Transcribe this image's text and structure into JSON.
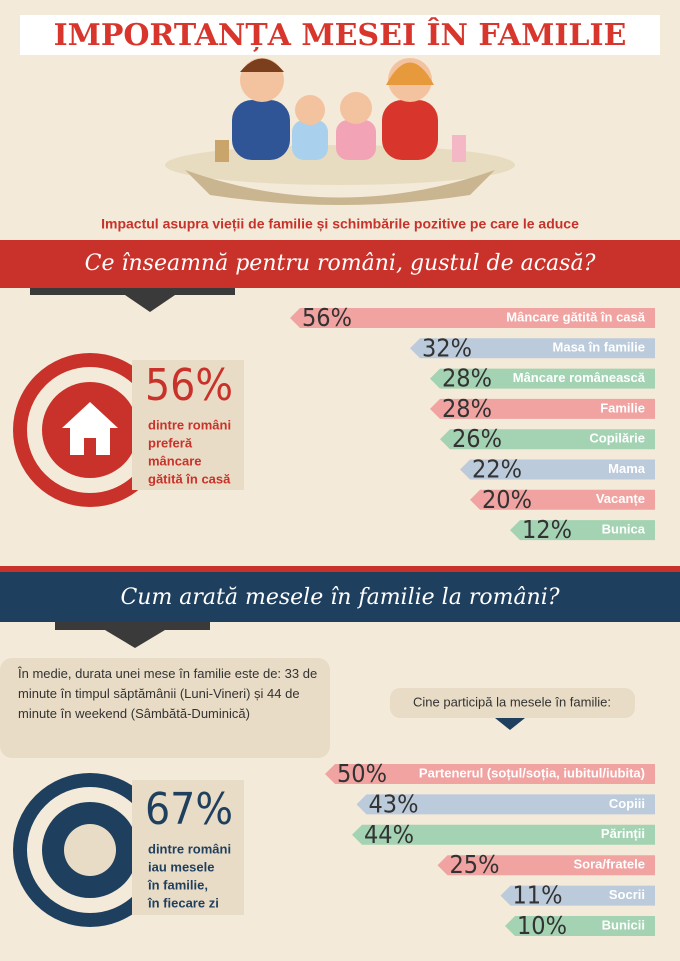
{
  "header": {
    "title": "IMPORTANȚA MESEI  ÎN FAMILIE",
    "subtitle": "Impactul asupra vieții de familie și schimbările pozitive pe care le aduce"
  },
  "section1": {
    "heading": "Ce înseamnă pentru români, gustul de acasă?",
    "highlight": {
      "number": "56%",
      "text": [
        "dintre români",
        "preferă",
        "mâncare",
        "gătită în casă"
      ]
    },
    "bars": {
      "categories": [
        "Mâncare gătită în casă",
        "Masa în familie",
        "Mâncare românească",
        "Familie",
        "Copilărie",
        "Mama",
        "Vacanțe",
        "Bunica"
      ],
      "values": [
        56,
        32,
        28,
        28,
        26,
        22,
        20,
        12
      ],
      "value_labels": [
        "56%",
        "32%",
        "28%",
        "28%",
        "26%",
        "22%",
        "20%",
        "12%"
      ],
      "colors": [
        "#f0a3a0",
        "#bccbdb",
        "#a3d3b2",
        "#f0a3a0",
        "#a3d3b2",
        "#bccbdb",
        "#f0a3a0",
        "#a3d3b2"
      ]
    }
  },
  "section2": {
    "heading": "Cum arată mesele în familie la români?",
    "note": "În medie, durata unei mese în familie este de: 33 de minute în timpul săptămânii (Luni-Vineri) și 44 de minute în weekend (Sâmbătă-Duminică)",
    "participants_title": "Cine participă la mesele în familie:",
    "highlight": {
      "number": "67%",
      "text": [
        "dintre români",
        "iau mesele",
        "în familie,",
        "în fiecare zi"
      ]
    },
    "bars": {
      "categories": [
        "Partenerul (soțul/soția, iubitul/iubita)",
        "Copiii",
        "Părinții",
        "Sora/fratele",
        "Socrii",
        "Bunicii"
      ],
      "values": [
        50,
        43,
        44,
        25,
        11,
        10
      ],
      "value_labels": [
        "50%",
        "43%",
        "44%",
        "25%",
        "11%",
        "10%"
      ],
      "colors": [
        "#f0a3a0",
        "#bccbdb",
        "#a3d3b2",
        "#f0a3a0",
        "#bccbdb",
        "#a3d3b2"
      ]
    }
  }
}
